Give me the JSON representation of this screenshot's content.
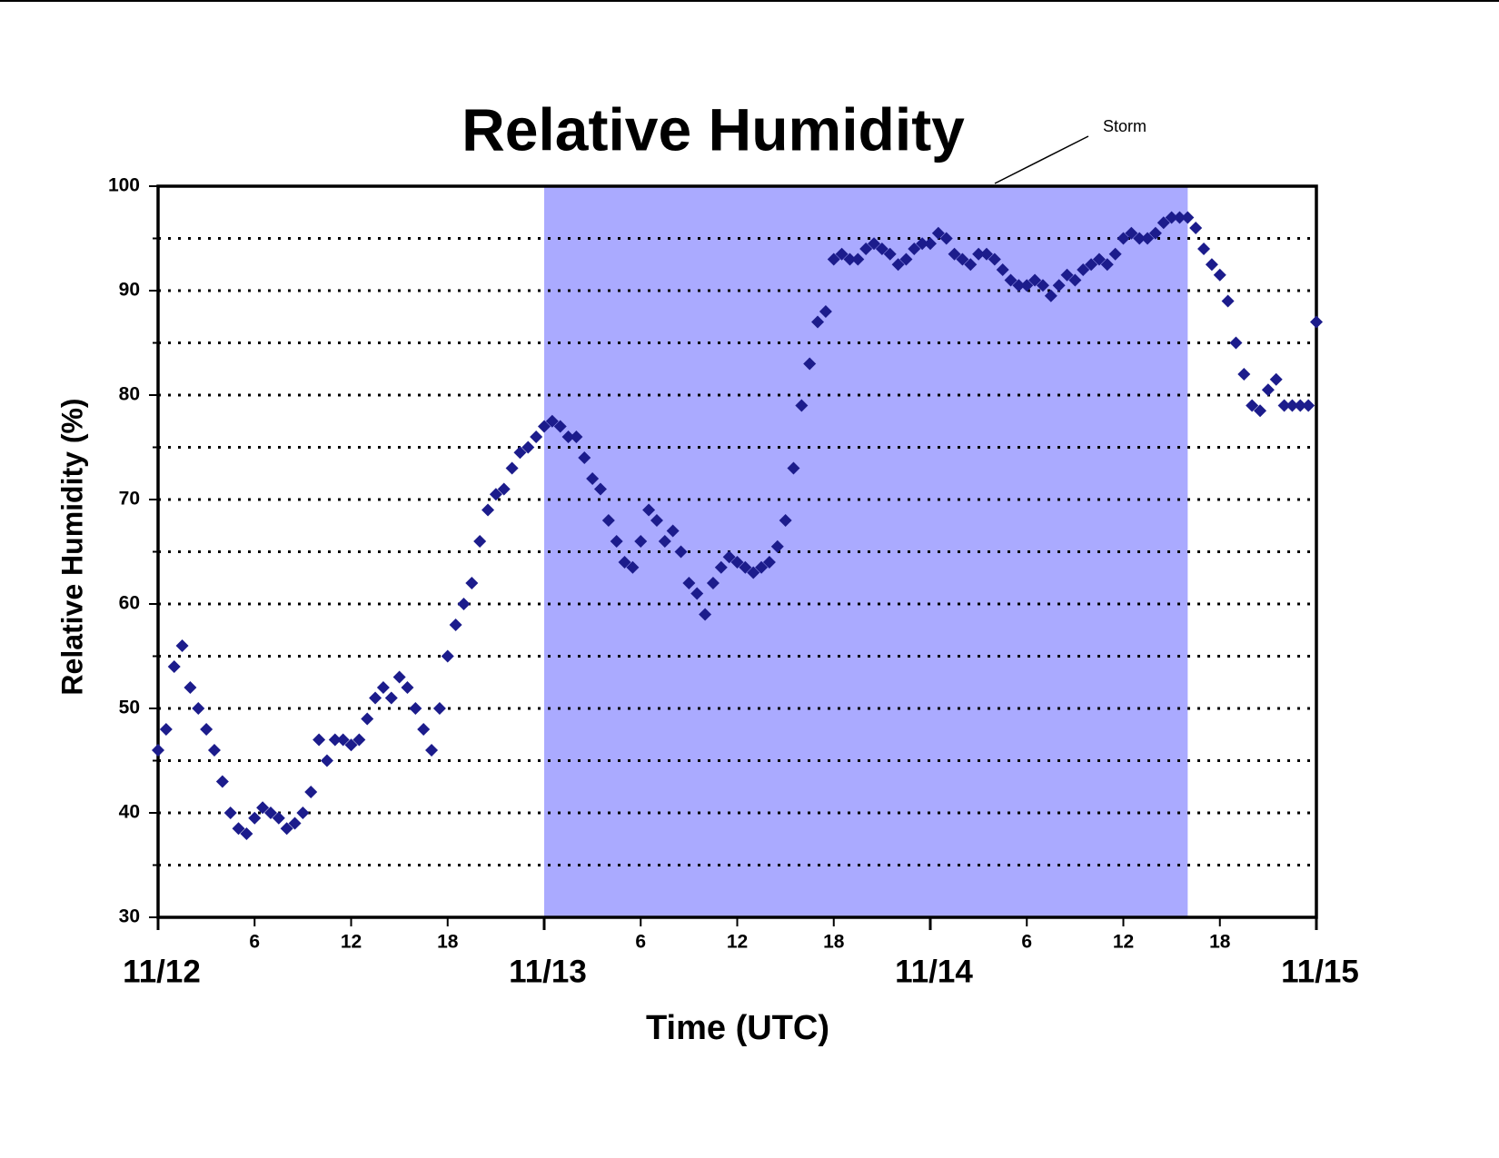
{
  "chart_data": {
    "type": "scatter",
    "title": "Relative Humidity",
    "xlabel": "Time (UTC)",
    "ylabel": "Relative Humidity (%)",
    "xlim": [
      0,
      72
    ],
    "ylim": [
      30,
      100
    ],
    "xticks": [
      {
        "value": 6,
        "label": "6"
      },
      {
        "value": 12,
        "label": "12"
      },
      {
        "value": 18,
        "label": "18"
      },
      {
        "value": 30,
        "label": "6"
      },
      {
        "value": 36,
        "label": "12"
      },
      {
        "value": 42,
        "label": "18"
      },
      {
        "value": 54,
        "label": "6"
      },
      {
        "value": 60,
        "label": "12"
      },
      {
        "value": 66,
        "label": "18"
      }
    ],
    "date_labels": [
      {
        "value": 0,
        "label": "11/12"
      },
      {
        "value": 24,
        "label": "11/13"
      },
      {
        "value": 48,
        "label": "11/14"
      },
      {
        "value": 72,
        "label": "11/15"
      }
    ],
    "yticks": [
      30,
      40,
      50,
      60,
      70,
      80,
      90,
      100
    ],
    "grid_lines": [
      35,
      40,
      45,
      50,
      55,
      60,
      65,
      70,
      75,
      80,
      85,
      90,
      95
    ],
    "grid": true,
    "storm": {
      "label": "Storm",
      "x": [
        24,
        64
      ],
      "color": "#aaaaff"
    },
    "series": [
      {
        "color": "#1c1c8c",
        "x": [
          0,
          0.5,
          1,
          1.5,
          2,
          2.5,
          3,
          3.5,
          4,
          4.5,
          5,
          5.5,
          6,
          6.5,
          7,
          7.5,
          8,
          8.5,
          9,
          9.5,
          10,
          10.5,
          11,
          11.5,
          12,
          12.5,
          13,
          13.5,
          14,
          14.5,
          15,
          15.5,
          16,
          16.5,
          17,
          17.5,
          18,
          18.5,
          19,
          19.5,
          20,
          20.5,
          21,
          21.5,
          22,
          22.5,
          23,
          23.5,
          24,
          24.5,
          25,
          25.5,
          26,
          26.5,
          27,
          27.5,
          28,
          28.5,
          29,
          29.5,
          30,
          30.5,
          31,
          31.5,
          32,
          32.5,
          33,
          33.5,
          34,
          34.5,
          35,
          35.5,
          36,
          36.5,
          37,
          37.5,
          38,
          38.5,
          39,
          39.5,
          40,
          40.5,
          41,
          41.5,
          42,
          42.5,
          43,
          43.5,
          44,
          44.5,
          45,
          45.5,
          46,
          46.5,
          47,
          47.5,
          48,
          48.5,
          49,
          49.5,
          50,
          50.5,
          51,
          51.5,
          52,
          52.5,
          53,
          53.5,
          54,
          54.5,
          55,
          55.5,
          56,
          56.5,
          57,
          57.5,
          58,
          58.5,
          59,
          59.5,
          60,
          60.5,
          61,
          61.5,
          62,
          62.5,
          63,
          63.5,
          64,
          64.5,
          65,
          65.5,
          66,
          66.5,
          67,
          67.5,
          68,
          68.5,
          69,
          69.5,
          70,
          70.5,
          71,
          71.5,
          72
        ],
        "values": [
          46,
          48,
          54,
          56,
          52,
          50,
          48,
          46,
          43,
          40,
          38.5,
          38,
          39.5,
          40.5,
          40,
          39.5,
          38.5,
          39,
          40,
          42,
          47,
          45,
          47,
          47,
          46.5,
          47,
          49,
          51,
          52,
          51,
          53,
          52,
          50,
          48,
          46,
          50,
          55,
          58,
          60,
          62,
          66,
          69,
          70.5,
          71,
          73,
          74.5,
          75,
          76,
          77,
          77.5,
          77,
          76,
          76,
          74,
          72,
          71,
          68,
          66,
          64,
          63.5,
          66,
          69,
          68,
          66,
          67,
          65,
          62,
          61,
          59,
          62,
          63.5,
          64.5,
          64,
          63.5,
          63,
          63.5,
          64,
          65.5,
          68,
          73,
          79,
          83,
          87,
          88,
          93,
          93.5,
          93,
          93,
          94,
          94.5,
          94,
          93.5,
          92.5,
          93,
          94,
          94.5,
          94.5,
          95.5,
          95,
          93.5,
          93,
          92.5,
          93.5,
          93.5,
          93,
          92,
          91,
          90.5,
          90.5,
          91,
          90.5,
          89.5,
          90.5,
          91.5,
          91,
          92,
          92.5,
          93,
          92.5,
          93.5,
          95,
          95.5,
          95,
          95,
          95.5,
          96.5,
          97,
          97,
          97,
          96,
          94,
          92.5,
          91.5,
          89,
          85,
          82,
          79,
          78.5,
          80.5,
          81.5,
          79,
          79,
          79,
          79,
          87
        ]
      }
    ]
  }
}
